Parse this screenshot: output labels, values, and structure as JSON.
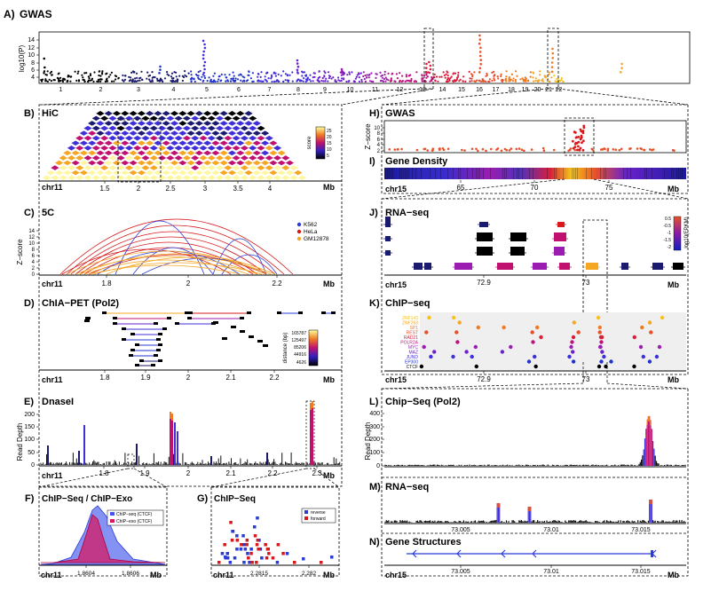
{
  "colors": {
    "spectrum": [
      "#000000",
      "#1a1a6e",
      "#2233cc",
      "#3f2fd9",
      "#6a22cc",
      "#9a1cb0",
      "#c01080",
      "#d81f3a",
      "#e8502a",
      "#f07a22",
      "#f5a623",
      "#f7c21a"
    ],
    "red": "#d7191c",
    "blue": "#2a3bd6",
    "orange": "#f5a623",
    "purple": "#7a1fa2",
    "pink": "#e0188a"
  },
  "panels": {
    "A": {
      "letter": "A)",
      "title": "GWAS",
      "ylabel": "log10(P)",
      "yticks": [
        "14",
        "12",
        "10",
        "8",
        "6",
        "4"
      ],
      "chromosomes": [
        "1",
        "2",
        "3",
        "4",
        "5",
        "6",
        "7",
        "8",
        "9",
        "10",
        "11",
        "12",
        "13",
        "14",
        "15",
        "16",
        "17",
        "18",
        "19",
        "20",
        "21",
        "22"
      ]
    },
    "B": {
      "letter": "B)",
      "title": "HiC",
      "chrom": "chr11",
      "unit": "Mb",
      "ticks": [
        "1.5",
        "2",
        "2.5",
        "3",
        "3.5",
        "4"
      ],
      "legend_title": "score",
      "legend_ticks": [
        "25",
        "20",
        "15",
        "10",
        "5"
      ]
    },
    "C": {
      "letter": "C)",
      "title": "5C",
      "ylabel": "Z−score",
      "yticks": [
        "14",
        "12",
        "10",
        "8",
        "6",
        "4",
        "2",
        "0"
      ],
      "chrom": "chr11",
      "unit": "Mb",
      "ticks": [
        "1.8",
        "2",
        "2.2"
      ],
      "legend": [
        {
          "name": "K562",
          "color": "#2a3bd6"
        },
        {
          "name": "HeLa",
          "color": "#d7191c"
        },
        {
          "name": "GM12878",
          "color": "#f5a623"
        }
      ]
    },
    "D": {
      "letter": "D)",
      "title": "ChIA−PET (Pol2)",
      "chrom": "chr11",
      "unit": "Mb",
      "ticks": [
        "1.8",
        "1.9",
        "2",
        "2.1",
        "2.2"
      ],
      "legend_title": "distance (bp)",
      "legend_ticks": [
        "165787",
        "125497",
        "85206",
        "44916",
        "4626"
      ]
    },
    "E": {
      "letter": "E)",
      "title": "DnaseI",
      "ylabel": "Read Depth",
      "yticks": [
        "200",
        "150",
        "100",
        "50",
        "0"
      ],
      "chrom": "chr11",
      "unit": "Mb",
      "ticks": [
        "1.8",
        "1.9",
        "2",
        "2.1",
        "2.2",
        "2.3"
      ]
    },
    "F": {
      "letter": "F)",
      "title": "ChIP−Seq / ChIP−Exo",
      "chrom": "chr11",
      "unit": "Mb",
      "ticks": [
        "1.8604",
        "1.8606"
      ],
      "legend": [
        "ChIP−seq (CTCF)",
        "ChIP−exo (CTCF)"
      ]
    },
    "G": {
      "letter": "G)",
      "title": "ChIP−Seq",
      "chrom": "chr11",
      "unit": "Mb",
      "ticks": [
        "2.2815",
        "2.282"
      ],
      "legend": [
        "reverse",
        "forward"
      ]
    },
    "H": {
      "letter": "H)",
      "title": "GWAS",
      "ylabel": "Z−score",
      "yticks": [
        "10",
        "8",
        "6",
        "4",
        "2"
      ]
    },
    "I": {
      "letter": "I)",
      "title": "Gene Density",
      "chrom": "chr15",
      "unit": "Mb",
      "ticks": [
        "65",
        "70",
        "75"
      ]
    },
    "J": {
      "letter": "J)",
      "title": "RNA−seq",
      "chrom": "chr15",
      "unit": "Mb",
      "ticks": [
        "72.9",
        "73"
      ],
      "legend_title": "log10(FPKM)",
      "legend_ticks": [
        "0.5",
        "-0.5",
        "-1",
        "-1.5",
        "-2"
      ]
    },
    "K": {
      "letter": "K)",
      "title": "ChIP−seq",
      "chrom": "chr15",
      "unit": "Mb",
      "ticks": [
        "72.9",
        "73"
      ],
      "factors": [
        "ZNF143",
        "ZNF263",
        "SP1",
        "REST",
        "RAD21",
        "POLR2A",
        "MYC",
        "MAZ",
        "JUND",
        "EP300",
        "CTCF"
      ]
    },
    "L": {
      "letter": "L)",
      "title": "Chip−Seq (Pol2)",
      "ylabel": "Read Depth",
      "yticks": [
        "400",
        "300",
        "200",
        "100",
        "0"
      ]
    },
    "M": {
      "letter": "M)",
      "title": "RNA−seq"
    },
    "N": {
      "letter": "N)",
      "title": "Gene Structures",
      "chrom": "chr15",
      "unit": "Mb",
      "ticks": [
        "73.005",
        "73.01",
        "73.015"
      ]
    }
  }
}
